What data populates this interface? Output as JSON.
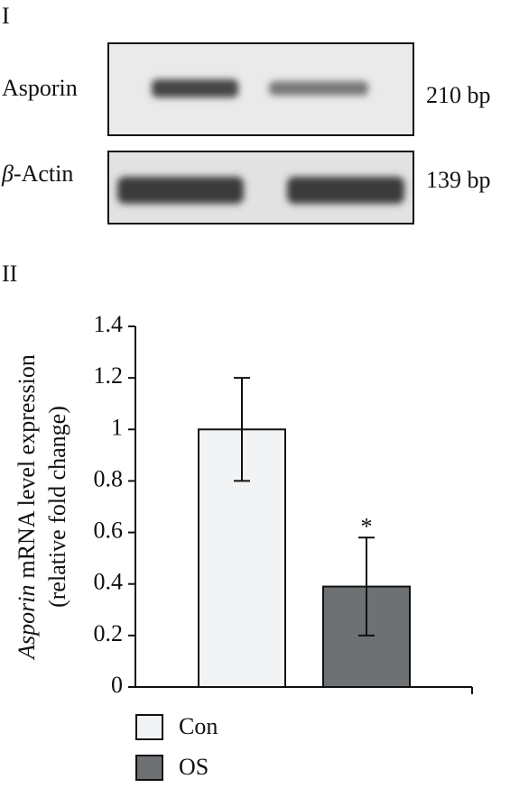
{
  "figure": {
    "panel_1": "I",
    "panel_2": "II",
    "gels": [
      {
        "label_symbol": null,
        "label": "Asporin",
        "size": "210 bp"
      },
      {
        "label_symbol": "β",
        "label": "-Actin",
        "size": "139 bp"
      }
    ]
  },
  "chart_data": {
    "type": "bar",
    "ylabel": {
      "italic": "Asporin",
      "text": "mRNA level expression",
      "line2": "(relative fold change)"
    },
    "categories": [
      "Con",
      "OS"
    ],
    "values": [
      1.0,
      0.39
    ],
    "errors": [
      0.2,
      0.19
    ],
    "colors": [
      "#f2f3f5",
      "#6d7174"
    ],
    "annotations": [
      {
        "category": 1,
        "text": "*"
      }
    ],
    "ylim": [
      0,
      1.4
    ],
    "yticks": [
      0,
      0.2,
      0.4,
      0.6,
      0.8,
      1,
      1.2,
      1.4
    ],
    "legend": "bottom-left"
  }
}
